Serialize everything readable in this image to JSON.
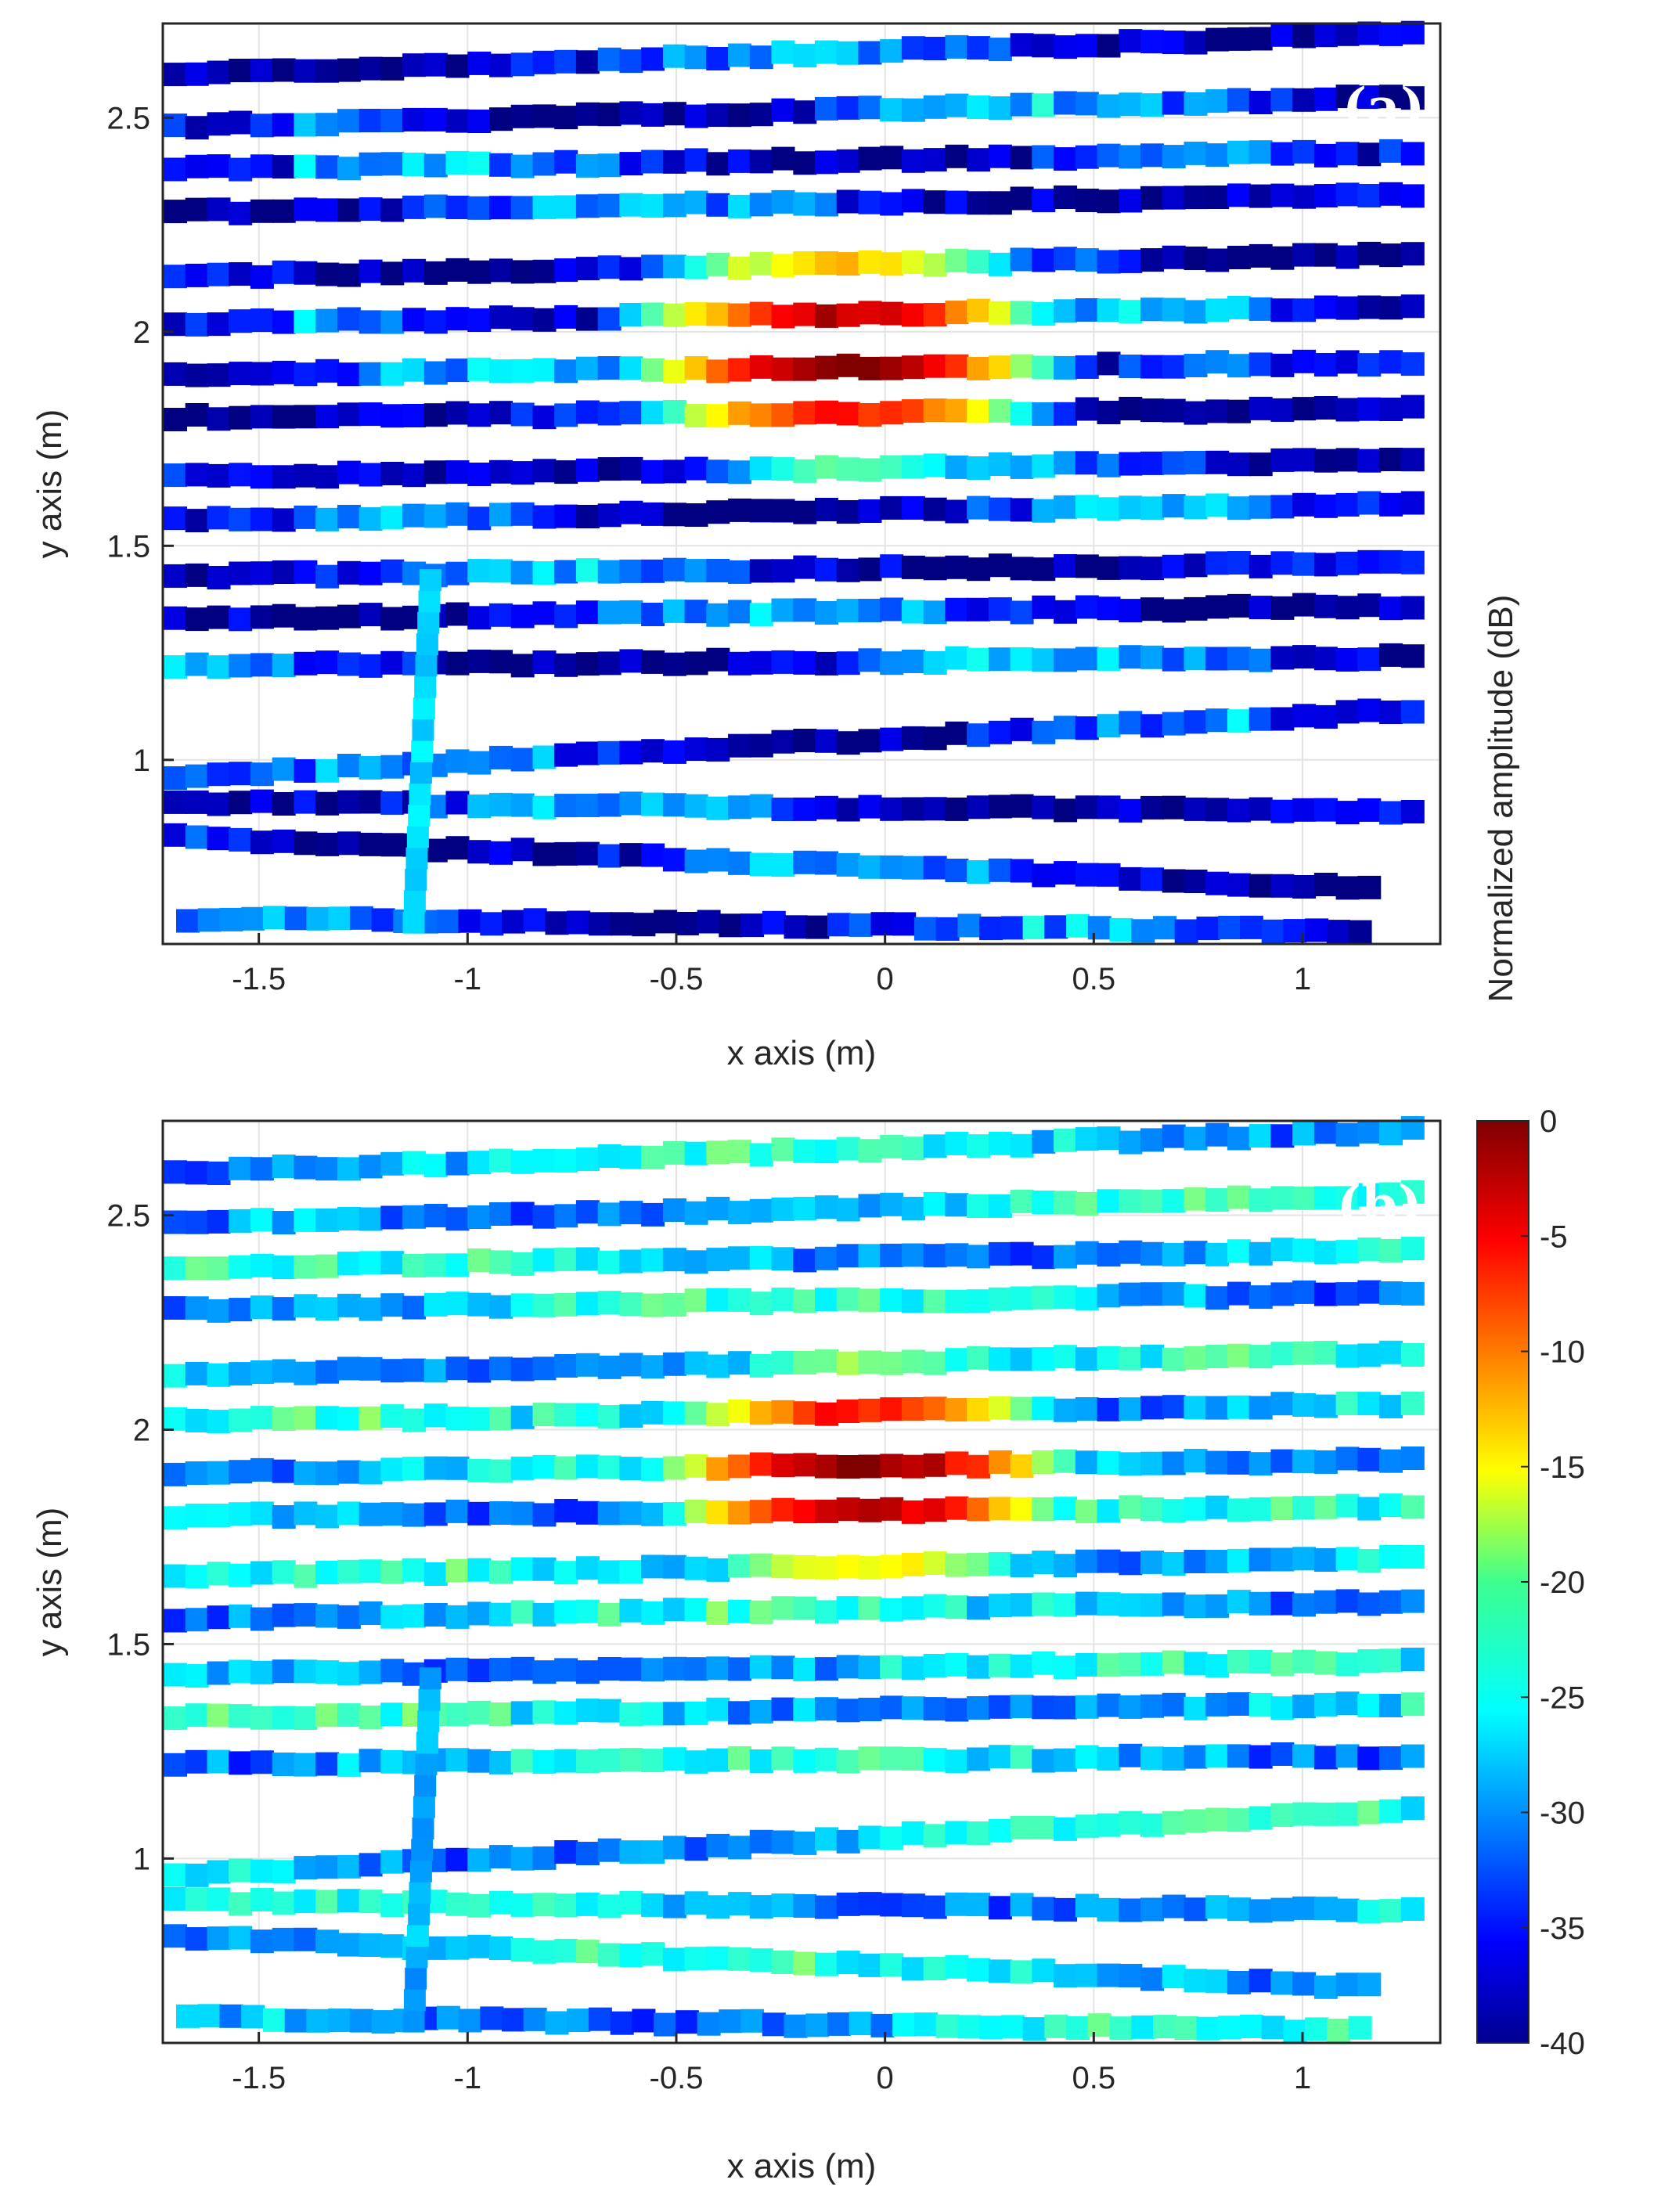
{
  "chart_data": [
    {
      "type": "scatter",
      "panel_label": "(a)",
      "xlabel": "x axis (m)",
      "ylabel": "y axis (m)",
      "xlim": [
        -1.73,
        1.33
      ],
      "ylim": [
        0.57,
        2.72
      ],
      "xticks": [
        -1.5,
        -1,
        -0.5,
        0,
        0.5,
        1
      ],
      "xtick_labels": [
        "-1.5",
        "-1",
        "-0.5",
        "0",
        "0.5",
        "1"
      ],
      "yticks": [
        1,
        1.5,
        2,
        2.5
      ],
      "ytick_labels": [
        "1",
        "1.5",
        "2",
        "2.5"
      ],
      "grid": true,
      "marker": "square",
      "color_value": "normalized amplitude (dB)",
      "description_points": "rows of square markers along scan tracks; strongest return centered near x=-0.2..0.3 m, y=1.6..2.4 m",
      "hotspot": {
        "x": -0.1,
        "y": 1.95,
        "peak_db": 0
      },
      "background_db": -30
    },
    {
      "type": "scatter",
      "panel_label": "(b)",
      "xlabel": "x axis (m)",
      "ylabel": "y axis (m)",
      "xlim": [
        -1.73,
        1.33
      ],
      "ylim": [
        0.57,
        2.72
      ],
      "xticks": [
        -1.5,
        -1,
        -0.5,
        0,
        0.5,
        1
      ],
      "xtick_labels": [
        "-1.5",
        "-1",
        "-0.5",
        "0",
        "0.5",
        "1"
      ],
      "yticks": [
        1,
        1.5,
        2,
        2.5
      ],
      "ytick_labels": [
        "1",
        "1.5",
        "2",
        "2.5"
      ],
      "grid": true,
      "marker": "square",
      "color_value": "normalized amplitude (dB)",
      "hotspot": {
        "x": -0.05,
        "y": 1.9,
        "peak_db": 0
      },
      "background_db": -24
    }
  ],
  "colorbar": {
    "label": "Normalized amplitude (dB)",
    "min": -40,
    "max": 0,
    "ticks": [
      0,
      -5,
      -10,
      -15,
      -20,
      -25,
      -30,
      -35,
      -40
    ],
    "tick_labels": [
      "0",
      "-5",
      "-10",
      "-15",
      "-20",
      "-25",
      "-30",
      "-35",
      "-40"
    ],
    "colormap": "jet"
  },
  "tracks": [
    {
      "y0": 0.63,
      "y1": 0.6,
      "start": -1.67,
      "end": 1.18
    },
    {
      "y0": 0.82,
      "y1": 0.7,
      "start": -1.7,
      "end": 1.18
    },
    {
      "y0": 0.9,
      "y1": 0.88,
      "start": -1.7,
      "end": 1.33
    },
    {
      "y0": 0.96,
      "y1": 1.12,
      "start": -1.7,
      "end": 1.33
    },
    {
      "y0": 1.22,
      "y1": 1.24,
      "start": -1.7,
      "end": 1.33
    },
    {
      "y0": 1.33,
      "y1": 1.36,
      "start": -1.7,
      "end": 1.33
    },
    {
      "y0": 1.43,
      "y1": 1.46,
      "start": -1.7,
      "end": 1.33
    },
    {
      "y0": 1.56,
      "y1": 1.6,
      "start": -1.7,
      "end": 1.33
    },
    {
      "y0": 1.66,
      "y1": 1.7,
      "start": -1.7,
      "end": 1.33
    },
    {
      "y0": 1.8,
      "y1": 1.82,
      "start": -1.7,
      "end": 1.33
    },
    {
      "y0": 1.9,
      "y1": 1.93,
      "start": -1.7,
      "end": 1.33
    },
    {
      "y0": 2.02,
      "y1": 2.06,
      "start": -1.7,
      "end": 1.33
    },
    {
      "y0": 2.13,
      "y1": 2.18,
      "start": -1.7,
      "end": 1.33
    },
    {
      "y0": 2.28,
      "y1": 2.32,
      "start": -1.7,
      "end": 1.33
    },
    {
      "y0": 2.38,
      "y1": 2.42,
      "start": -1.7,
      "end": 1.33
    },
    {
      "y0": 2.48,
      "y1": 2.55,
      "start": -1.7,
      "end": 1.33
    },
    {
      "y0": 2.6,
      "y1": 2.7,
      "start": -1.7,
      "end": 1.33
    }
  ]
}
